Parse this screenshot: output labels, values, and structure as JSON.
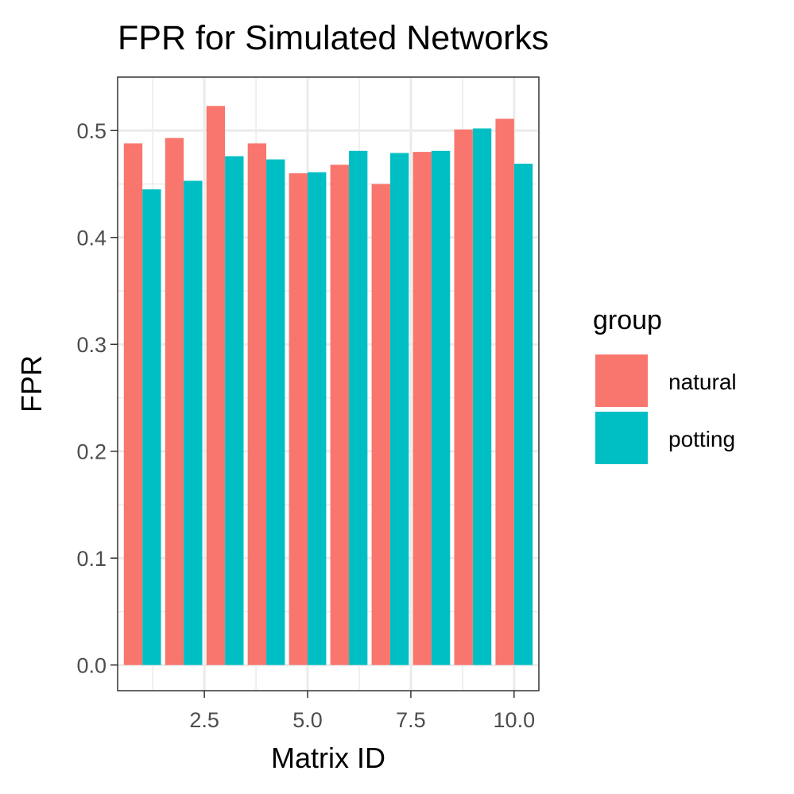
{
  "chart_data": {
    "type": "bar",
    "title": "FPR for Simulated Networks",
    "xlabel": "Matrix ID",
    "ylabel": "FPR",
    "x": [
      1,
      2,
      3,
      4,
      5,
      6,
      7,
      8,
      9,
      10
    ],
    "xlim": [
      0.4,
      10.6
    ],
    "ylim": [
      -0.024,
      0.55
    ],
    "xticks": [
      2.5,
      5.0,
      7.5,
      10.0
    ],
    "xtick_labels": [
      "2.5",
      "5.0",
      "7.5",
      "10.0"
    ],
    "yticks": [
      0.0,
      0.1,
      0.2,
      0.3,
      0.4,
      0.5
    ],
    "ytick_labels": [
      "0.0",
      "0.1",
      "0.2",
      "0.3",
      "0.4",
      "0.5"
    ],
    "grid": true,
    "theme": "bw",
    "legend": {
      "title": "group",
      "position": "right"
    },
    "series": [
      {
        "name": "natural",
        "color": "#F8766D",
        "values": [
          0.488,
          0.493,
          0.523,
          0.488,
          0.46,
          0.468,
          0.45,
          0.48,
          0.501,
          0.511
        ]
      },
      {
        "name": "potting",
        "color": "#00BFC4",
        "values": [
          0.445,
          0.453,
          0.476,
          0.473,
          0.461,
          0.481,
          0.479,
          0.481,
          0.502,
          0.469
        ]
      }
    ]
  }
}
